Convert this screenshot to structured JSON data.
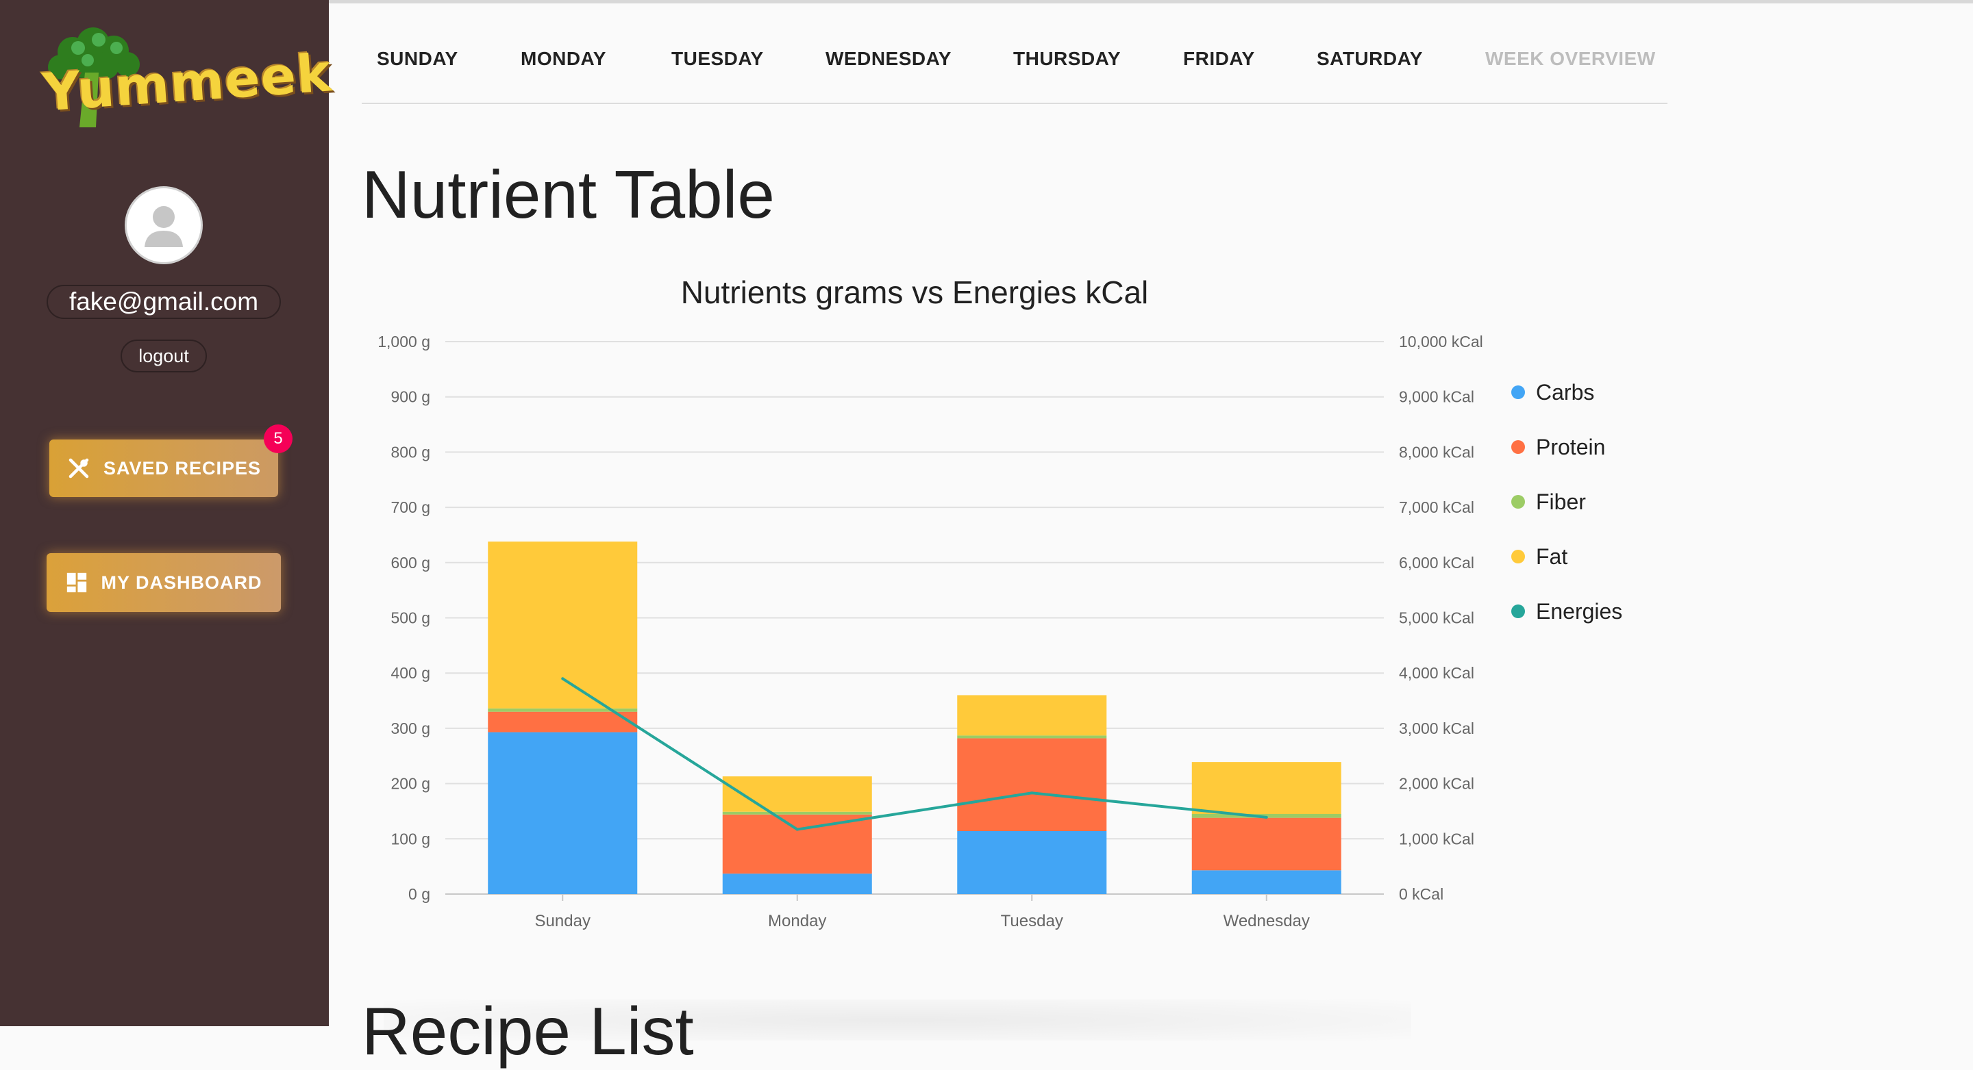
{
  "sidebar": {
    "logo_text": "Yummeek",
    "email": "fake@gmail.com",
    "logout_label": "logout",
    "saved_recipes_label": "SAVED RECIPES",
    "saved_recipes_count": "5",
    "dashboard_label": "MY DASHBOARD"
  },
  "tabs": [
    {
      "label": "SUNDAY"
    },
    {
      "label": "MONDAY"
    },
    {
      "label": "TUESDAY"
    },
    {
      "label": "WEDNESDAY"
    },
    {
      "label": "THURSDAY"
    },
    {
      "label": "FRIDAY"
    },
    {
      "label": "SATURDAY"
    },
    {
      "label": "WEEK OVERVIEW"
    }
  ],
  "main": {
    "title": "Nutrient Table",
    "next_section_title": "Recipe List"
  },
  "colors": {
    "sidebar_bg": "#463233",
    "carbs": "#42a5f5",
    "protein": "#ff7043",
    "fiber": "#9ccc65",
    "fat": "#ffca3a",
    "energies": "#26a69a",
    "badge": "#f50057"
  },
  "chart_data": {
    "type": "bar",
    "stacked": true,
    "title": "Nutrients grams vs Energies kCal",
    "categories": [
      "Sunday",
      "Monday",
      "Tuesday",
      "Wednesday"
    ],
    "series": [
      {
        "name": "Carbs",
        "axis": "left",
        "color": "#42a5f5",
        "values": [
          293,
          37,
          114,
          43
        ]
      },
      {
        "name": "Protein",
        "axis": "left",
        "color": "#ff7043",
        "values": [
          37,
          107,
          168,
          95
        ]
      },
      {
        "name": "Fiber",
        "axis": "left",
        "color": "#9ccc65",
        "values": [
          6,
          5,
          5,
          7
        ]
      },
      {
        "name": "Fat",
        "axis": "left",
        "color": "#ffca3a",
        "values": [
          302,
          64,
          73,
          94
        ]
      },
      {
        "name": "Energies",
        "axis": "right",
        "type": "line",
        "color": "#26a69a",
        "values": [
          3900,
          1170,
          1830,
          1390
        ]
      }
    ],
    "left_axis": {
      "min": 0,
      "max": 1000,
      "ticks": [
        "0 g",
        "100 g",
        "200 g",
        "300 g",
        "400 g",
        "500 g",
        "600 g",
        "700 g",
        "800 g",
        "900 g",
        "1,000 g"
      ]
    },
    "right_axis": {
      "min": 0,
      "max": 10000,
      "ticks": [
        "0 kCal",
        "1,000 kCal",
        "2,000 kCal",
        "3,000 kCal",
        "4,000 kCal",
        "5,000 kCal",
        "6,000 kCal",
        "7,000 kCal",
        "8,000 kCal",
        "9,000 kCal",
        "10,000 kCal"
      ]
    },
    "grid": true,
    "legend": "right"
  }
}
